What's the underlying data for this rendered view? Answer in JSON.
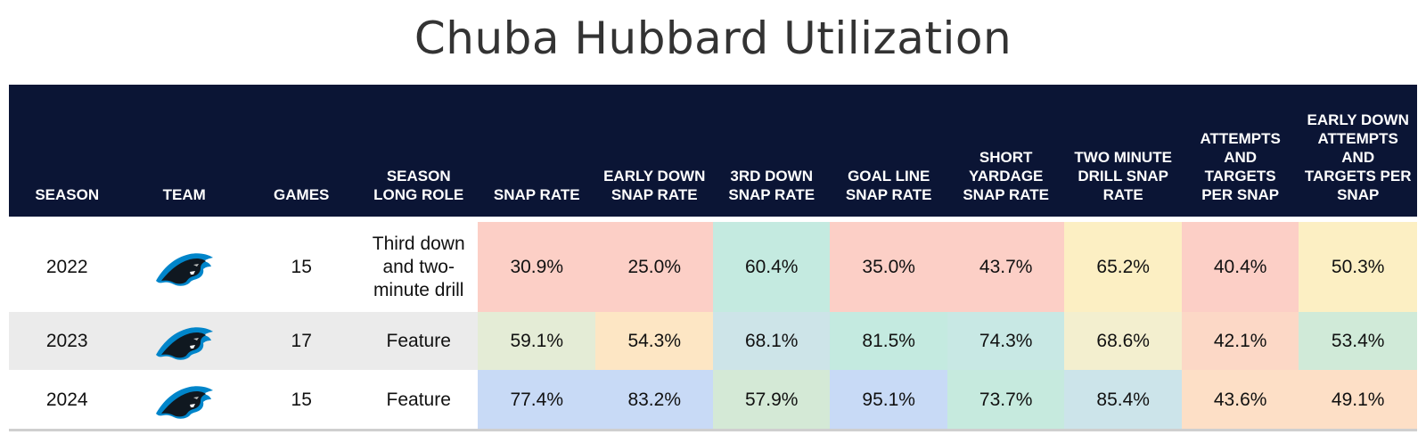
{
  "title": "Chuba Hubbard Utilization",
  "columns": [
    "SEASON",
    "TEAM",
    "GAMES",
    "SEASON LONG ROLE",
    "SNAP RATE",
    "EARLY DOWN SNAP RATE",
    "3RD DOWN SNAP RATE",
    "GOAL LINE SNAP RATE",
    "SHORT YARDAGE SNAP RATE",
    "TWO MINUTE DRILL SNAP RATE",
    "ATTEMPTS AND TARGETS PER SNAP",
    "EARLY DOWN ATTEMPTS AND TARGETS PER SNAP"
  ],
  "team_logo_icon": "carolina-panthers-logo",
  "rows": [
    {
      "season": "2022",
      "games": "15",
      "role": "Third down and two-minute drill",
      "metrics": [
        "30.9%",
        "25.0%",
        "60.4%",
        "35.0%",
        "43.7%",
        "65.2%",
        "40.4%",
        "50.3%"
      ],
      "colors": [
        "#fccfc6",
        "#fccfc6",
        "#c4eae0",
        "#fccfc6",
        "#fccfc6",
        "#fcefc3",
        "#fccfc6",
        "#fcefc3"
      ]
    },
    {
      "season": "2023",
      "games": "17",
      "role": "Feature",
      "metrics": [
        "59.1%",
        "54.3%",
        "68.1%",
        "81.5%",
        "74.3%",
        "68.6%",
        "42.1%",
        "53.4%"
      ],
      "colors": [
        "#e4ecd6",
        "#fde6c4",
        "#cde4e8",
        "#c4eae0",
        "#c8e8e4",
        "#f3efcf",
        "#fcd8c6",
        "#d0ead8"
      ]
    },
    {
      "season": "2024",
      "games": "15",
      "role": "Feature",
      "metrics": [
        "77.4%",
        "83.2%",
        "57.9%",
        "95.1%",
        "73.7%",
        "85.4%",
        "43.6%",
        "49.1%"
      ],
      "colors": [
        "#c8daf6",
        "#c8daf6",
        "#d4e9d6",
        "#c8daf6",
        "#c6eade",
        "#cce4ea",
        "#fddfc6",
        "#fddfc6"
      ]
    }
  ]
}
